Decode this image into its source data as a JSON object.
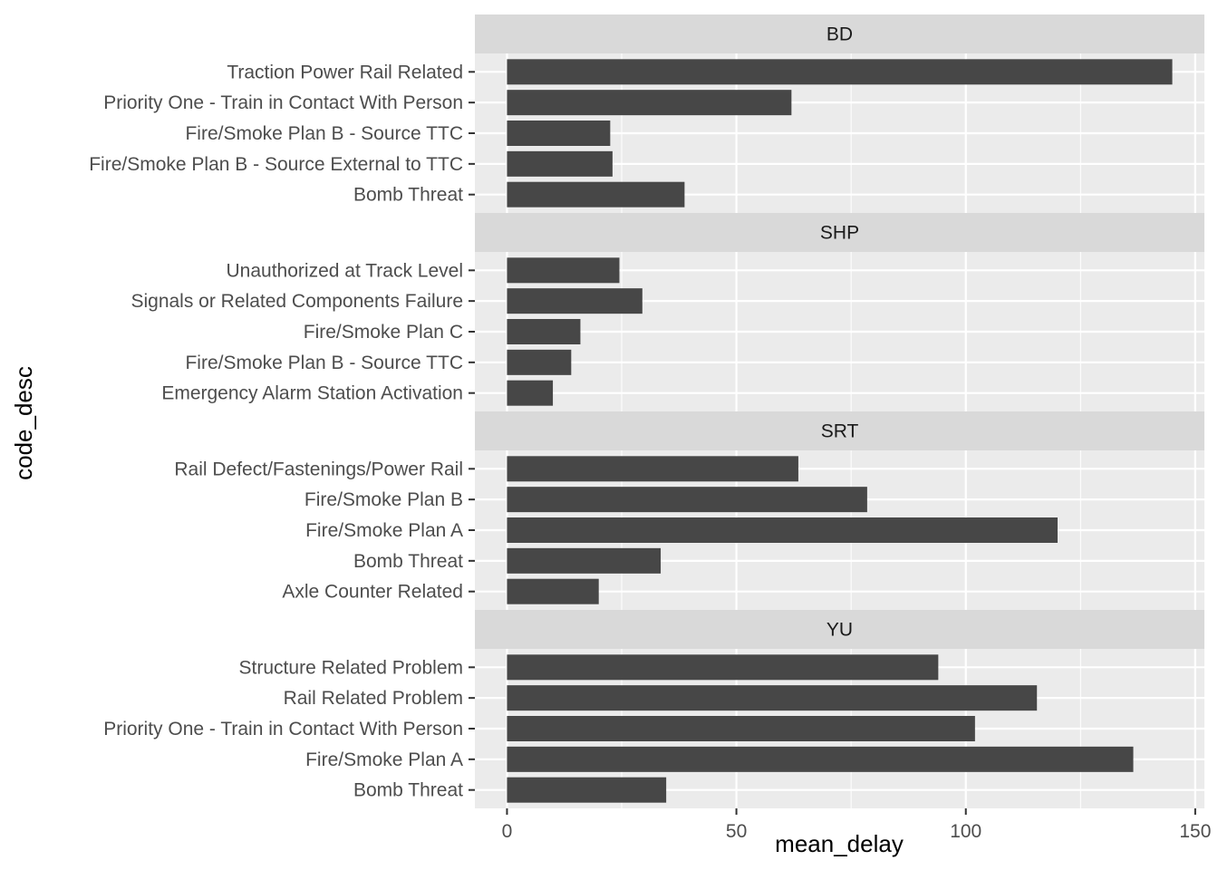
{
  "chart_data": {
    "type": "bar",
    "orientation": "horizontal",
    "facet_layout": "vertical stack, one panel per line, free y scales, shared x scale",
    "xlabel": "mean_delay",
    "ylabel": "code_desc",
    "xlim": [
      -7,
      152
    ],
    "x_ticks": [
      0,
      50,
      100,
      150
    ],
    "x_tick_labels": [
      "0",
      "50",
      "100",
      "150"
    ],
    "grid": true,
    "colors": {
      "bar": "#474747",
      "panel_background": "#ebebeb",
      "strip_background": "#d9d9d9",
      "grid": "#ffffff"
    },
    "facets": [
      {
        "label": "BD",
        "categories": [
          "Traction Power Rail Related",
          "Priority One - Train in Contact With Person",
          "Fire/Smoke Plan B - Source TTC",
          "Fire/Smoke Plan B - Source External to TTC",
          "Bomb Threat"
        ],
        "values": [
          145,
          62,
          22.5,
          23,
          38.7
        ]
      },
      {
        "label": "SHP",
        "categories": [
          "Unauthorized at Track Level",
          "Signals or Related Components Failure",
          "Fire/Smoke Plan C",
          "Fire/Smoke Plan B - Source TTC",
          "Emergency Alarm Station Activation"
        ],
        "values": [
          24.5,
          29.5,
          16,
          14,
          10
        ]
      },
      {
        "label": "SRT",
        "categories": [
          "Rail Defect/Fastenings/Power Rail",
          "Fire/Smoke Plan B",
          "Fire/Smoke Plan A",
          "Bomb Threat",
          "Axle Counter Related"
        ],
        "values": [
          63.5,
          78.5,
          120,
          33.5,
          20
        ]
      },
      {
        "label": "YU",
        "categories": [
          "Structure Related Problem",
          "Rail Related Problem",
          "Priority One - Train in Contact With Person",
          "Fire/Smoke Plan A",
          "Bomb Threat"
        ],
        "values": [
          94,
          115.5,
          102,
          136.5,
          34.7
        ]
      }
    ]
  }
}
